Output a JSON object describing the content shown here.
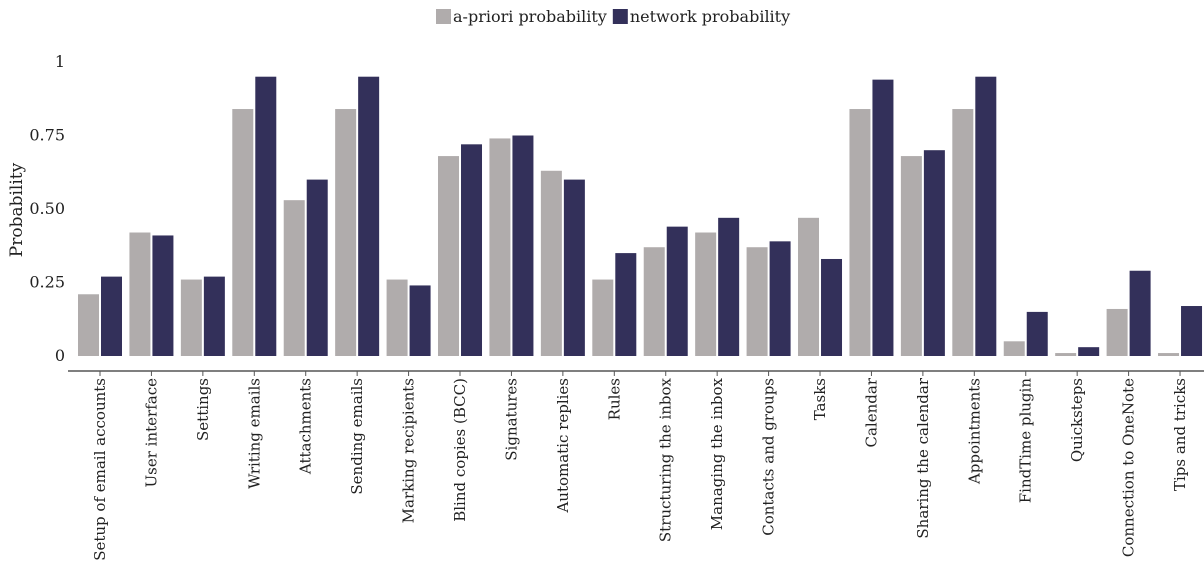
{
  "chart_data": {
    "type": "bar",
    "title": "",
    "xlabel": "",
    "ylabel": "Probability",
    "ylim": [
      0,
      1
    ],
    "yticks": [
      0,
      0.25,
      0.5,
      0.75,
      1
    ],
    "ytick_labels": [
      "0",
      "0.25",
      "0.50",
      "0.75",
      "1"
    ],
    "grid": false,
    "legend": "top-center",
    "categories": [
      "Setup of email accounts",
      "User interface",
      "Settings",
      "Writing emails",
      "Attachments",
      "Sending emails",
      "Marking recipients",
      "Blind copies (BCC)",
      "Signatures",
      "Automatic replies",
      "Rules",
      "Structuring the inbox",
      "Managing the inbox",
      "Contacts and groups",
      "Tasks",
      "Calendar",
      "Sharing the calendar",
      "Appointments",
      "FindTime plugin",
      "Quicksteps",
      "Connection to OneNote",
      "Tips and tricks"
    ],
    "series": [
      {
        "name": "a-priori probability",
        "color": "#b0acac",
        "values": [
          0.21,
          0.42,
          0.26,
          0.84,
          0.53,
          0.84,
          0.26,
          0.68,
          0.74,
          0.63,
          0.26,
          0.37,
          0.42,
          0.37,
          0.47,
          0.84,
          0.68,
          0.84,
          0.05,
          0.01,
          0.16,
          0.01
        ]
      },
      {
        "name": "network probability",
        "color": "#33305a",
        "values": [
          0.27,
          0.41,
          0.27,
          0.95,
          0.6,
          0.95,
          0.24,
          0.72,
          0.75,
          0.6,
          0.35,
          0.44,
          0.47,
          0.39,
          0.33,
          0.94,
          0.7,
          0.95,
          0.15,
          0.03,
          0.29,
          0.17
        ]
      }
    ]
  }
}
